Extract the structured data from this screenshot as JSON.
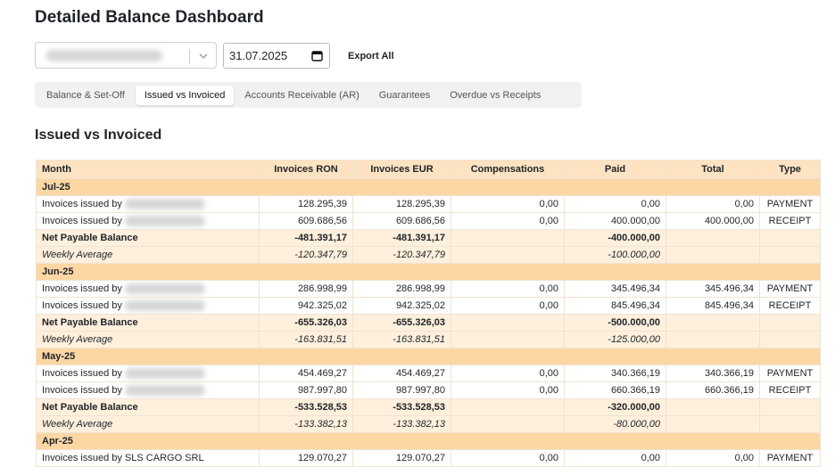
{
  "header": {
    "title": "Detailed Balance Dashboard"
  },
  "controls": {
    "date": "31.07.2025",
    "export": "Export All"
  },
  "tabs": {
    "items": [
      "Balance & Set-Off",
      "Issued vs Invoiced",
      "Accounts Receivable (AR)",
      "Guarantees",
      "Overdue vs Receipts"
    ],
    "active": 1
  },
  "section": {
    "title": "Issued vs Invoiced"
  },
  "table": {
    "columns": [
      "Month",
      "Invoices RON",
      "Invoices EUR",
      "Compensations",
      "Paid",
      "Total",
      "Type"
    ],
    "groups": [
      {
        "month": "Jul-25",
        "items": [
          [
            "Invoices issued by",
            "128.295,39",
            "128.295,39",
            "0,00",
            "0,00",
            "0,00",
            "PAYMENT"
          ],
          [
            "Invoices issued by",
            "609.686,56",
            "609.686,56",
            "0,00",
            "400.000,00",
            "400.000,00",
            "RECEIPT"
          ]
        ],
        "net": {
          "label": "Net Payable Balance",
          "ron": "-481.391,17",
          "eur": "-481.391,17",
          "paid": "-400.000,00"
        },
        "weekly": {
          "label": "Weekly Average",
          "ron": "-120.347,79",
          "eur": "-120.347,79",
          "paid": "-100.000,00"
        }
      },
      {
        "month": "Jun-25",
        "items": [
          [
            "Invoices issued by",
            "286.998,99",
            "286.998,99",
            "0,00",
            "345.496,34",
            "345.496,34",
            "PAYMENT"
          ],
          [
            "Invoices issued by",
            "942.325,02",
            "942.325,02",
            "0,00",
            "845.496,34",
            "845.496,34",
            "RECEIPT"
          ]
        ],
        "net": {
          "label": "Net Payable Balance",
          "ron": "-655.326,03",
          "eur": "-655.326,03",
          "paid": "-500.000,00"
        },
        "weekly": {
          "label": "Weekly Average",
          "ron": "-163.831,51",
          "eur": "-163.831,51",
          "paid": "-125.000,00"
        }
      },
      {
        "month": "May-25",
        "items": [
          [
            "Invoices issued by",
            "454.469,27",
            "454.469,27",
            "0,00",
            "340.366,19",
            "340.366,19",
            "PAYMENT"
          ],
          [
            "Invoices issued by",
            "987.997,80",
            "987.997,80",
            "0,00",
            "660.366,19",
            "660.366,19",
            "RECEIPT"
          ]
        ],
        "net": {
          "label": "Net Payable Balance",
          "ron": "-533.528,53",
          "eur": "-533.528,53",
          "paid": "-320.000,00"
        },
        "weekly": {
          "label": "Weekly Average",
          "ron": "-133.382,13",
          "eur": "-133.382,13",
          "paid": "-80.000,00"
        }
      },
      {
        "month": "Apr-25",
        "items": [
          [
            "Invoices issued by SLS CARGO SRL",
            "129.070,27",
            "129.070,27",
            "0,00",
            "0,00",
            "0,00",
            "PAYMENT"
          ]
        ]
      }
    ]
  }
}
